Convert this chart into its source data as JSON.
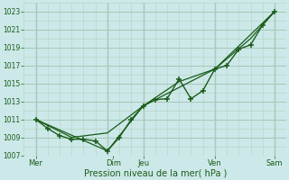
{
  "bg_color": "#cce8e8",
  "grid_color_major": "#a8c8b8",
  "grid_color_minor": "#b8d8c8",
  "line_color": "#1a5c1a",
  "xlabel": "Pression niveau de la mer( hPa )",
  "xlabel_color": "#1a5c1a",
  "tick_color": "#1a5c1a",
  "ylim": [
    1007,
    1024
  ],
  "yticks": [
    1007,
    1009,
    1011,
    1013,
    1015,
    1017,
    1019,
    1021,
    1023
  ],
  "xlim": [
    0,
    22
  ],
  "xtick_labels": [
    "Mer",
    "Dim",
    "Jeu",
    "Ven",
    "Sam"
  ],
  "xtick_positions": [
    1,
    7.5,
    10,
    16,
    21
  ],
  "vline_positions": [
    1,
    7,
    10,
    16,
    21
  ],
  "series1_x": [
    1,
    2,
    3,
    4,
    5,
    6,
    7,
    8,
    9,
    10,
    11,
    12,
    13,
    14,
    15,
    16,
    17,
    18,
    19,
    20,
    21
  ],
  "series1_y": [
    1011.0,
    1010.0,
    1009.2,
    1008.8,
    1008.8,
    1008.6,
    1007.5,
    1009.0,
    1011.0,
    1012.5,
    1013.2,
    1013.3,
    1015.5,
    1013.3,
    1014.2,
    1016.6,
    1017.0,
    1018.8,
    1019.3,
    1021.5,
    1023.0
  ],
  "series2_x": [
    1,
    7,
    10,
    16,
    21
  ],
  "series2_y": [
    1011.0,
    1007.5,
    1012.5,
    1016.6,
    1023.0
  ],
  "series3_x": [
    1,
    4,
    7,
    10,
    13,
    16,
    19,
    21
  ],
  "series3_y": [
    1011.0,
    1009.0,
    1009.5,
    1012.5,
    1015.2,
    1016.6,
    1020.0,
    1023.0
  ]
}
